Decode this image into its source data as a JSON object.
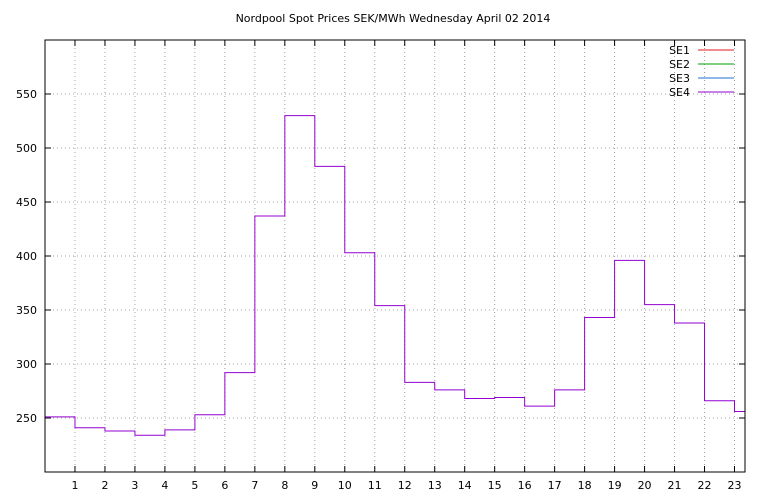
{
  "chart_data": {
    "type": "line",
    "step": true,
    "title": "Nordpool Spot Prices SEK/MWh Wednesday April 02 2014",
    "xlabel": "",
    "ylabel": "",
    "xlim": [
      0,
      23.35
    ],
    "ylim": [
      200,
      600
    ],
    "grid": true,
    "legend_position": "top-right",
    "x_ticks": [
      1,
      2,
      3,
      4,
      5,
      6,
      7,
      8,
      9,
      10,
      11,
      12,
      13,
      14,
      15,
      16,
      17,
      18,
      19,
      20,
      21,
      22,
      23
    ],
    "y_ticks": [
      250,
      300,
      350,
      400,
      450,
      500,
      550
    ],
    "hours": [
      0,
      1,
      2,
      3,
      4,
      5,
      6,
      7,
      8,
      9,
      10,
      11,
      12,
      13,
      14,
      15,
      16,
      17,
      18,
      19,
      20,
      21,
      22,
      23
    ],
    "series": [
      {
        "name": "SE1",
        "color": "#e41a1c",
        "values": []
      },
      {
        "name": "SE2",
        "color": "#009e00",
        "values": []
      },
      {
        "name": "SE3",
        "color": "#1f6fd6",
        "values": []
      },
      {
        "name": "SE4",
        "color": "#9400d3",
        "values": [
          251,
          241,
          238,
          234,
          239,
          253,
          292,
          437,
          530,
          483,
          403,
          354,
          283,
          276,
          268,
          269,
          261,
          276,
          343,
          396,
          355,
          338,
          266,
          256
        ]
      }
    ]
  }
}
